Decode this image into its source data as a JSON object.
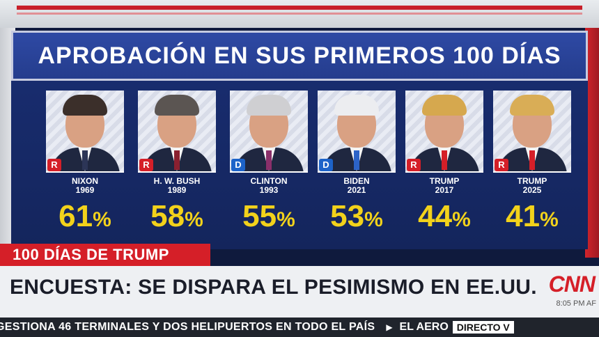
{
  "title": "APROBACIÓN EN SUS PRIMEROS 100 DÍAS",
  "colors": {
    "republican": "#d51f28",
    "democrat": "#1d63c9",
    "percent": "#f2d21b"
  },
  "presidents": [
    {
      "name": "NIXON",
      "year": "1969",
      "party": "R",
      "value": "61",
      "percent_sign": "%",
      "hair": "#3b2f2a",
      "tie": "#2c3556"
    },
    {
      "name": "H. W. BUSH",
      "year": "1989",
      "party": "R",
      "value": "58",
      "percent_sign": "%",
      "hair": "#5b5552",
      "tie": "#8a2030"
    },
    {
      "name": "CLINTON",
      "year": "1993",
      "party": "D",
      "value": "55",
      "percent_sign": "%",
      "hair": "#cfcfd2",
      "tie": "#8a2f6a"
    },
    {
      "name": "BIDEN",
      "year": "2021",
      "party": "D",
      "value": "53",
      "percent_sign": "%",
      "hair": "#ecedf0",
      "tie": "#2c63c8"
    },
    {
      "name": "TRUMP",
      "year": "2017",
      "party": "R",
      "value": "44",
      "percent_sign": "%",
      "hair": "#d6a84e",
      "tie": "#d51f28"
    },
    {
      "name": "TRUMP",
      "year": "2025",
      "party": "R",
      "value": "41",
      "percent_sign": "%",
      "hair": "#d9ad56",
      "tie": "#d51f28"
    }
  ],
  "tag": "100 DÍAS DE TRUMP",
  "headline": "ENCUESTA: SE DISPARA EL PESIMISMO EN EE.UU.",
  "logo": "CNN",
  "time": "8:05 PM AF",
  "ticker": {
    "text1": "GESTIONA 46 TERMINALES Y DOS HELIPUERTOS EN TODO EL PAÍS",
    "text2": "EL AERO",
    "live": "DIRECTO V"
  }
}
